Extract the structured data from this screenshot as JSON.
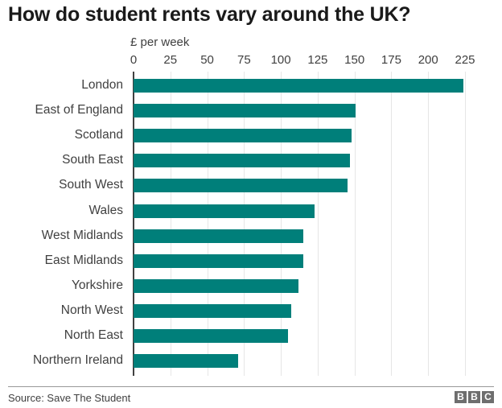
{
  "chart_data": {
    "type": "bar",
    "orientation": "horizontal",
    "title": "How do student rents vary around the UK?",
    "xlabel": "£ per week",
    "ylabel": "",
    "xlim": [
      0,
      225
    ],
    "x_ticks": [
      0,
      25,
      50,
      75,
      100,
      125,
      150,
      175,
      200,
      225
    ],
    "grid": true,
    "bar_color": "#007f7a",
    "categories": [
      "London",
      "East of England",
      "Scotland",
      "South East",
      "South West",
      "Wales",
      "West Midlands",
      "East Midlands",
      "Yorkshire",
      "North West",
      "North East",
      "Northern Ireland"
    ],
    "values": [
      224,
      151,
      148,
      147,
      145,
      123,
      115,
      115,
      112,
      107,
      105,
      71
    ]
  },
  "header": {
    "title": "How do student rents vary around the UK?",
    "unit_label": "£ per week"
  },
  "footer": {
    "source": "Source: Save The Student",
    "logo": [
      "B",
      "B",
      "C"
    ]
  }
}
